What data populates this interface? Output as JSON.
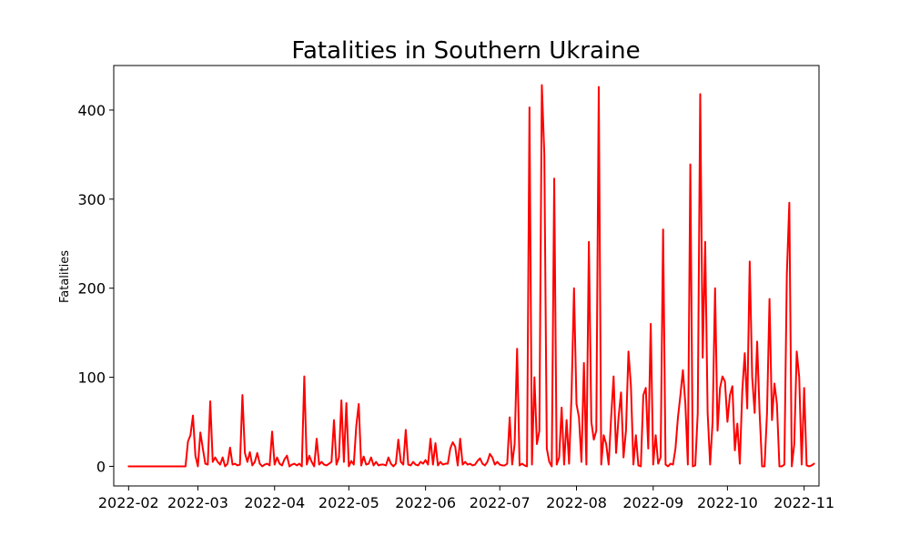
{
  "chart_data": {
    "type": "line",
    "title": "Fatalities in Southern Ukraine",
    "xlabel": "",
    "ylabel": "Fatalities",
    "xlim": [
      "2022-01-26",
      "2022-11-07"
    ],
    "ylim": [
      -22,
      450
    ],
    "grid": false,
    "legend": "none",
    "x_ticks": [
      "2022-02",
      "2022-03",
      "2022-04",
      "2022-05",
      "2022-06",
      "2022-07",
      "2022-08",
      "2022-09",
      "2022-10",
      "2022-11"
    ],
    "y_ticks": [
      0,
      100,
      200,
      300,
      400
    ],
    "series": [
      {
        "color": "#ff0000",
        "points": [
          [
            "2022-02-01",
            0
          ],
          [
            "2022-02-24",
            0
          ],
          [
            "2022-02-25",
            28
          ],
          [
            "2022-02-26",
            35
          ],
          [
            "2022-02-27",
            57
          ],
          [
            "2022-02-28",
            12
          ],
          [
            "2022-03-01",
            0
          ],
          [
            "2022-03-02",
            38
          ],
          [
            "2022-03-03",
            20
          ],
          [
            "2022-03-04",
            3
          ],
          [
            "2022-03-05",
            2
          ],
          [
            "2022-03-06",
            73
          ],
          [
            "2022-03-07",
            5
          ],
          [
            "2022-03-08",
            10
          ],
          [
            "2022-03-09",
            5
          ],
          [
            "2022-03-10",
            2
          ],
          [
            "2022-03-11",
            10
          ],
          [
            "2022-03-12",
            0
          ],
          [
            "2022-03-13",
            3
          ],
          [
            "2022-03-14",
            21
          ],
          [
            "2022-03-15",
            2
          ],
          [
            "2022-03-16",
            3
          ],
          [
            "2022-03-17",
            1
          ],
          [
            "2022-03-18",
            2
          ],
          [
            "2022-03-19",
            80
          ],
          [
            "2022-03-20",
            15
          ],
          [
            "2022-03-21",
            5
          ],
          [
            "2022-03-22",
            16
          ],
          [
            "2022-03-23",
            1
          ],
          [
            "2022-03-24",
            5
          ],
          [
            "2022-03-25",
            15
          ],
          [
            "2022-03-26",
            3
          ],
          [
            "2022-03-27",
            0
          ],
          [
            "2022-03-28",
            2
          ],
          [
            "2022-03-29",
            3
          ],
          [
            "2022-03-30",
            1
          ],
          [
            "2022-03-31",
            39
          ],
          [
            "2022-04-01",
            2
          ],
          [
            "2022-04-02",
            10
          ],
          [
            "2022-04-03",
            3
          ],
          [
            "2022-04-04",
            1
          ],
          [
            "2022-04-05",
            8
          ],
          [
            "2022-04-06",
            12
          ],
          [
            "2022-04-07",
            0
          ],
          [
            "2022-04-08",
            2
          ],
          [
            "2022-04-09",
            3
          ],
          [
            "2022-04-10",
            1
          ],
          [
            "2022-04-11",
            3
          ],
          [
            "2022-04-12",
            0
          ],
          [
            "2022-04-13",
            101
          ],
          [
            "2022-04-14",
            2
          ],
          [
            "2022-04-15",
            12
          ],
          [
            "2022-04-16",
            5
          ],
          [
            "2022-04-17",
            0
          ],
          [
            "2022-04-18",
            31
          ],
          [
            "2022-04-19",
            2
          ],
          [
            "2022-04-20",
            5
          ],
          [
            "2022-04-21",
            2
          ],
          [
            "2022-04-22",
            1
          ],
          [
            "2022-04-23",
            3
          ],
          [
            "2022-04-24",
            5
          ],
          [
            "2022-04-25",
            52
          ],
          [
            "2022-04-26",
            2
          ],
          [
            "2022-04-27",
            10
          ],
          [
            "2022-04-28",
            74
          ],
          [
            "2022-04-29",
            5
          ],
          [
            "2022-04-30",
            71
          ],
          [
            "2022-05-01",
            0
          ],
          [
            "2022-05-02",
            6
          ],
          [
            "2022-05-03",
            2
          ],
          [
            "2022-05-04",
            45
          ],
          [
            "2022-05-05",
            70
          ],
          [
            "2022-05-06",
            1
          ],
          [
            "2022-05-07",
            11
          ],
          [
            "2022-05-08",
            2
          ],
          [
            "2022-05-09",
            3
          ],
          [
            "2022-05-10",
            10
          ],
          [
            "2022-05-11",
            1
          ],
          [
            "2022-05-12",
            5
          ],
          [
            "2022-05-13",
            1
          ],
          [
            "2022-05-14",
            2
          ],
          [
            "2022-05-15",
            2
          ],
          [
            "2022-05-16",
            1
          ],
          [
            "2022-05-17",
            10
          ],
          [
            "2022-05-18",
            3
          ],
          [
            "2022-05-19",
            0
          ],
          [
            "2022-05-20",
            3
          ],
          [
            "2022-05-21",
            30
          ],
          [
            "2022-05-22",
            5
          ],
          [
            "2022-05-23",
            2
          ],
          [
            "2022-05-24",
            41
          ],
          [
            "2022-05-25",
            2
          ],
          [
            "2022-05-26",
            1
          ],
          [
            "2022-05-27",
            5
          ],
          [
            "2022-05-28",
            2
          ],
          [
            "2022-05-29",
            1
          ],
          [
            "2022-05-30",
            5
          ],
          [
            "2022-05-31",
            3
          ],
          [
            "2022-06-01",
            7
          ],
          [
            "2022-06-02",
            2
          ],
          [
            "2022-06-03",
            31
          ],
          [
            "2022-06-04",
            2
          ],
          [
            "2022-06-05",
            26
          ],
          [
            "2022-06-06",
            1
          ],
          [
            "2022-06-07",
            5
          ],
          [
            "2022-06-08",
            2
          ],
          [
            "2022-06-09",
            3
          ],
          [
            "2022-06-10",
            3
          ],
          [
            "2022-06-11",
            20
          ],
          [
            "2022-06-12",
            27
          ],
          [
            "2022-06-13",
            22
          ],
          [
            "2022-06-14",
            1
          ],
          [
            "2022-06-15",
            31
          ],
          [
            "2022-06-16",
            2
          ],
          [
            "2022-06-17",
            5
          ],
          [
            "2022-06-18",
            2
          ],
          [
            "2022-06-19",
            3
          ],
          [
            "2022-06-20",
            1
          ],
          [
            "2022-06-21",
            2
          ],
          [
            "2022-06-22",
            6
          ],
          [
            "2022-06-23",
            9
          ],
          [
            "2022-06-24",
            3
          ],
          [
            "2022-06-25",
            1
          ],
          [
            "2022-06-26",
            5
          ],
          [
            "2022-06-27",
            14
          ],
          [
            "2022-06-28",
            10
          ],
          [
            "2022-06-29",
            2
          ],
          [
            "2022-06-30",
            5
          ],
          [
            "2022-07-01",
            2
          ],
          [
            "2022-07-02",
            1
          ],
          [
            "2022-07-03",
            1
          ],
          [
            "2022-07-04",
            3
          ],
          [
            "2022-07-05",
            55
          ],
          [
            "2022-07-06",
            2
          ],
          [
            "2022-07-07",
            25
          ],
          [
            "2022-07-08",
            132
          ],
          [
            "2022-07-09",
            1
          ],
          [
            "2022-07-10",
            3
          ],
          [
            "2022-07-11",
            1
          ],
          [
            "2022-07-12",
            0
          ],
          [
            "2022-07-13",
            403
          ],
          [
            "2022-07-14",
            2
          ],
          [
            "2022-07-15",
            100
          ],
          [
            "2022-07-16",
            25
          ],
          [
            "2022-07-17",
            40
          ],
          [
            "2022-07-18",
            428
          ],
          [
            "2022-07-19",
            350
          ],
          [
            "2022-07-20",
            20
          ],
          [
            "2022-07-21",
            5
          ],
          [
            "2022-07-22",
            0
          ],
          [
            "2022-07-23",
            323
          ],
          [
            "2022-07-24",
            2
          ],
          [
            "2022-07-25",
            10
          ],
          [
            "2022-07-26",
            66
          ],
          [
            "2022-07-27",
            2
          ],
          [
            "2022-07-28",
            52
          ],
          [
            "2022-07-29",
            3
          ],
          [
            "2022-07-30",
            80
          ],
          [
            "2022-07-31",
            200
          ],
          [
            "2022-08-01",
            70
          ],
          [
            "2022-08-02",
            55
          ],
          [
            "2022-08-03",
            5
          ],
          [
            "2022-08-04",
            116
          ],
          [
            "2022-08-05",
            2
          ],
          [
            "2022-08-06",
            252
          ],
          [
            "2022-08-07",
            50
          ],
          [
            "2022-08-08",
            30
          ],
          [
            "2022-08-09",
            40
          ],
          [
            "2022-08-10",
            426
          ],
          [
            "2022-08-11",
            2
          ],
          [
            "2022-08-12",
            35
          ],
          [
            "2022-08-13",
            25
          ],
          [
            "2022-08-14",
            2
          ],
          [
            "2022-08-15",
            55
          ],
          [
            "2022-08-16",
            101
          ],
          [
            "2022-08-17",
            15
          ],
          [
            "2022-08-18",
            55
          ],
          [
            "2022-08-19",
            83
          ],
          [
            "2022-08-20",
            10
          ],
          [
            "2022-08-21",
            40
          ],
          [
            "2022-08-22",
            129
          ],
          [
            "2022-08-23",
            90
          ],
          [
            "2022-08-24",
            2
          ],
          [
            "2022-08-25",
            35
          ],
          [
            "2022-08-26",
            1
          ],
          [
            "2022-08-27",
            0
          ],
          [
            "2022-08-28",
            80
          ],
          [
            "2022-08-29",
            88
          ],
          [
            "2022-08-30",
            20
          ],
          [
            "2022-08-31",
            160
          ],
          [
            "2022-09-01",
            2
          ],
          [
            "2022-09-02",
            35
          ],
          [
            "2022-09-03",
            3
          ],
          [
            "2022-09-04",
            10
          ],
          [
            "2022-09-05",
            266
          ],
          [
            "2022-09-06",
            2
          ],
          [
            "2022-09-07",
            0
          ],
          [
            "2022-09-08",
            3
          ],
          [
            "2022-09-09",
            2
          ],
          [
            "2022-09-10",
            20
          ],
          [
            "2022-09-11",
            55
          ],
          [
            "2022-09-12",
            80
          ],
          [
            "2022-09-13",
            108
          ],
          [
            "2022-09-14",
            70
          ],
          [
            "2022-09-15",
            2
          ],
          [
            "2022-09-16",
            339
          ],
          [
            "2022-09-17",
            0
          ],
          [
            "2022-09-18",
            1
          ],
          [
            "2022-09-19",
            60
          ],
          [
            "2022-09-20",
            418
          ],
          [
            "2022-09-21",
            122
          ],
          [
            "2022-09-22",
            252
          ],
          [
            "2022-09-23",
            60
          ],
          [
            "2022-09-24",
            2
          ],
          [
            "2022-09-25",
            50
          ],
          [
            "2022-09-26",
            200
          ],
          [
            "2022-09-27",
            40
          ],
          [
            "2022-09-28",
            88
          ],
          [
            "2022-09-29",
            101
          ],
          [
            "2022-09-30",
            95
          ],
          [
            "2022-10-01",
            50
          ],
          [
            "2022-10-02",
            80
          ],
          [
            "2022-10-03",
            90
          ],
          [
            "2022-10-04",
            18
          ],
          [
            "2022-10-05",
            48
          ],
          [
            "2022-10-06",
            3
          ],
          [
            "2022-10-07",
            85
          ],
          [
            "2022-10-08",
            127
          ],
          [
            "2022-10-09",
            65
          ],
          [
            "2022-10-10",
            230
          ],
          [
            "2022-10-11",
            100
          ],
          [
            "2022-10-12",
            60
          ],
          [
            "2022-10-13",
            140
          ],
          [
            "2022-10-14",
            60
          ],
          [
            "2022-10-15",
            0
          ],
          [
            "2022-10-16",
            0
          ],
          [
            "2022-10-17",
            60
          ],
          [
            "2022-10-18",
            188
          ],
          [
            "2022-10-19",
            52
          ],
          [
            "2022-10-20",
            93
          ],
          [
            "2022-10-21",
            70
          ],
          [
            "2022-10-22",
            0
          ],
          [
            "2022-10-23",
            0
          ],
          [
            "2022-10-24",
            2
          ],
          [
            "2022-10-25",
            215
          ],
          [
            "2022-10-26",
            296
          ],
          [
            "2022-10-27",
            0
          ],
          [
            "2022-10-28",
            25
          ],
          [
            "2022-10-29",
            129
          ],
          [
            "2022-10-30",
            100
          ],
          [
            "2022-10-31",
            2
          ],
          [
            "2022-11-01",
            88
          ],
          [
            "2022-11-02",
            1
          ],
          [
            "2022-11-03",
            0
          ],
          [
            "2022-11-04",
            1
          ],
          [
            "2022-11-05",
            3
          ]
        ]
      }
    ]
  }
}
